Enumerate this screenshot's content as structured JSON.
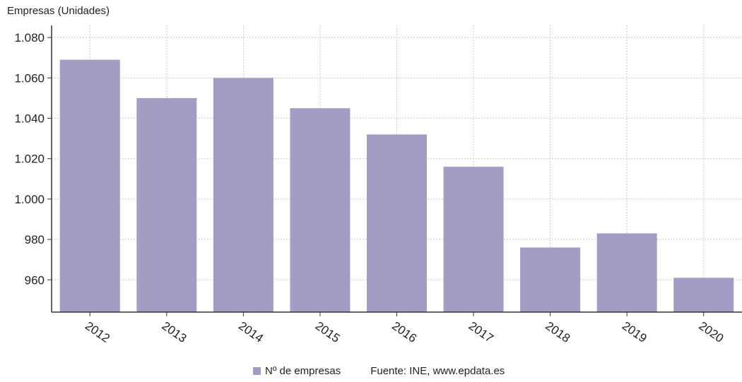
{
  "chart_data": {
    "type": "bar",
    "ylabel": "Empresas (Unidades)",
    "categories": [
      "2012",
      "2013",
      "2014",
      "2015",
      "2016",
      "2017",
      "2018",
      "2019",
      "2020"
    ],
    "series": [
      {
        "name": "Nº de empresas",
        "values": [
          1069,
          1050,
          1060,
          1045,
          1032,
          1016,
          976,
          983,
          961
        ]
      }
    ],
    "ylim": [
      944,
      1086
    ],
    "yticks": [
      960,
      980,
      1000,
      1020,
      1040,
      1060,
      1080
    ],
    "ytick_labels": [
      "960",
      "980",
      "1.000",
      "1.020",
      "1.040",
      "1.060",
      "1.080"
    ],
    "grid": true,
    "legend_position": "bottom",
    "source": "Fuente: INE, www.epdata.es",
    "colors": {
      "bar": "#a39dc6",
      "grid": "#c8c8c8",
      "axis": "#333333"
    }
  }
}
